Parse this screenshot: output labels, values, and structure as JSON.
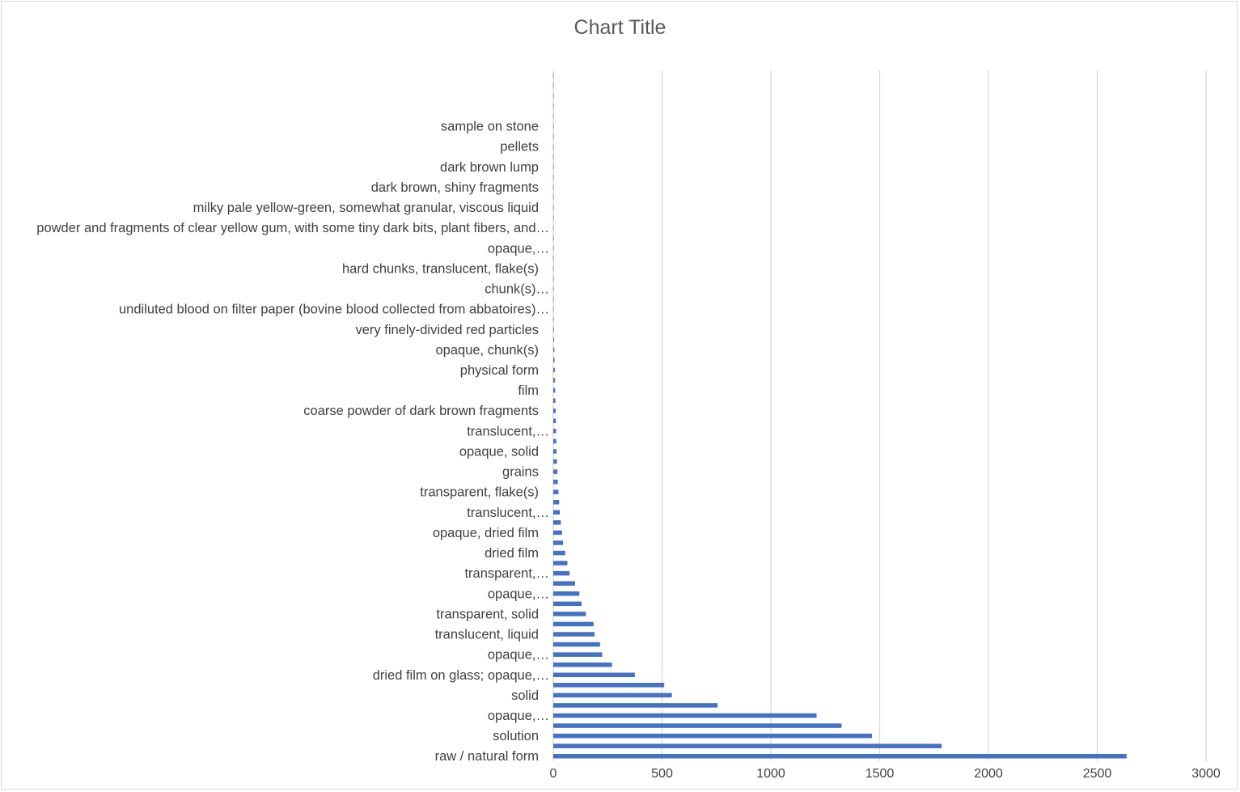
{
  "chart_data": {
    "type": "bar",
    "orientation": "horizontal",
    "title": "Chart Title",
    "xlabel": "",
    "ylabel": "",
    "xlim": [
      0,
      3000
    ],
    "x_ticks": [
      0,
      500,
      1000,
      1500,
      2000,
      2500,
      3000
    ],
    "grid": "vertical major gridlines",
    "legend": "none",
    "bar_color": "#4472c4",
    "gridline_color": "#d9d9d9",
    "category_count": 68,
    "visible_category_labels": [
      "raw / natural form",
      "solution",
      "opaque,…",
      "solid",
      "dried film on glass; opaque,…",
      "opaque,…",
      "translucent, liquid",
      "transparent, solid",
      "opaque,…",
      "transparent,…",
      "dried film",
      "opaque, dried film",
      "translucent,…",
      "transparent, flake(s)",
      "grains",
      "opaque,  solid",
      "translucent,…",
      "coarse powder of dark brown fragments",
      "film",
      "physical form",
      "opaque,  chunk(s)",
      "very finely-divided red particles",
      "undiluted blood on filter paper (bovine blood collected from abbatoires)…",
      "chunk(s)…",
      "hard chunks, translucent, flake(s)",
      "opaque,…",
      "powder and fragments of clear yellow gum, with some tiny dark bits, plant fibers, and…",
      "milky pale yellow-green, somewhat granular, viscous liquid",
      "dark brown, shiny fragments",
      "dark brown lump",
      "pellets",
      "sample on stone"
    ],
    "values": [
      2635,
      1785,
      1465,
      1325,
      1210,
      755,
      545,
      510,
      375,
      270,
      225,
      215,
      190,
      185,
      150,
      130,
      120,
      100,
      75,
      65,
      55,
      45,
      40,
      35,
      30,
      27,
      24,
      21,
      19,
      17,
      15,
      14,
      13,
      12,
      11,
      10,
      9,
      8,
      7,
      6,
      5,
      4,
      3,
      2,
      1,
      1,
      1,
      1,
      1,
      1,
      1,
      1,
      1,
      1,
      1,
      1,
      1,
      1,
      1,
      1,
      1,
      1,
      1,
      1,
      1,
      1,
      1,
      1
    ]
  }
}
